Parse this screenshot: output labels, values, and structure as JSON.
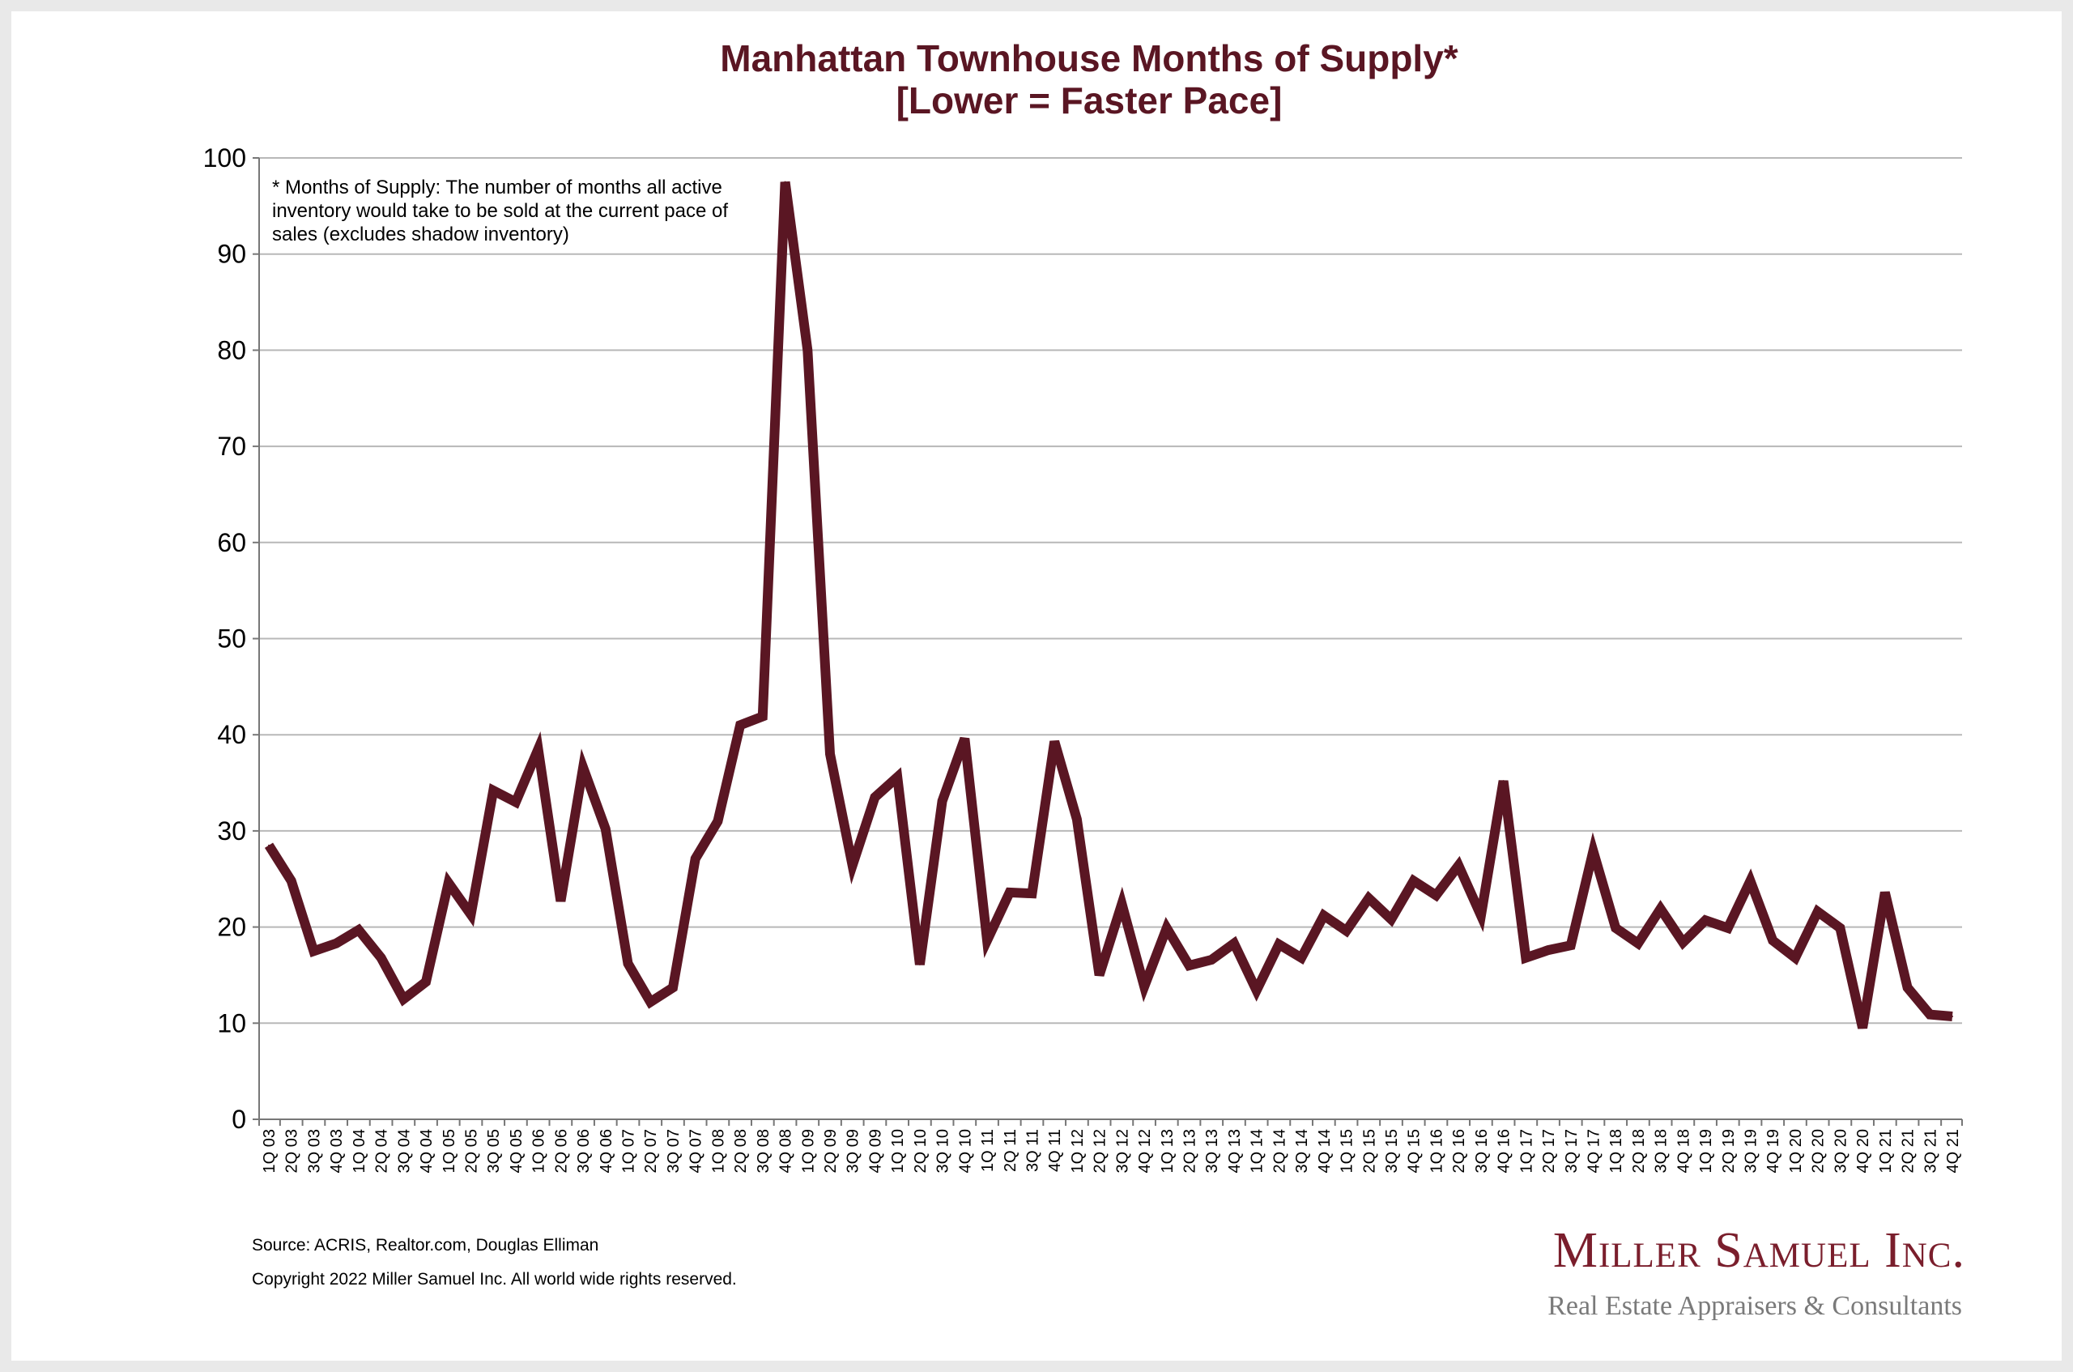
{
  "chart_data": {
    "type": "line",
    "title": "Manhattan Townhouse Months of Supply*",
    "subtitle": "[Lower = Faster Pace]",
    "xlabel": "",
    "ylabel": "",
    "ylim": [
      0,
      100
    ],
    "yticks": [
      0,
      10,
      20,
      30,
      40,
      50,
      60,
      70,
      80,
      90,
      100
    ],
    "grid": true,
    "line_color": "#5a1623",
    "categories": [
      "1Q 03",
      "2Q 03",
      "3Q 03",
      "4Q 03",
      "1Q 04",
      "2Q 04",
      "3Q 04",
      "4Q 04",
      "1Q 05",
      "2Q 05",
      "3Q 05",
      "4Q 05",
      "1Q 06",
      "2Q 06",
      "3Q 06",
      "4Q 06",
      "1Q 07",
      "2Q 07",
      "3Q 07",
      "4Q 07",
      "1Q 08",
      "2Q 08",
      "3Q 08",
      "4Q 08",
      "1Q 09",
      "2Q 09",
      "3Q 09",
      "4Q 09",
      "1Q 10",
      "2Q 10",
      "3Q 10",
      "4Q 10",
      "1Q 11",
      "2Q 11",
      "3Q 11",
      "4Q 11",
      "1Q 12",
      "2Q 12",
      "3Q 12",
      "4Q 12",
      "1Q 13",
      "2Q 13",
      "3Q 13",
      "4Q 13",
      "1Q 14",
      "2Q 14",
      "3Q 14",
      "4Q 14",
      "1Q 15",
      "2Q 15",
      "3Q 15",
      "4Q 15",
      "1Q 16",
      "2Q 16",
      "3Q 16",
      "4Q 16",
      "1Q 17",
      "2Q 17",
      "3Q 17",
      "4Q 17",
      "1Q 18",
      "2Q 18",
      "3Q 18",
      "4Q 18",
      "1Q 19",
      "2Q 19",
      "3Q 19",
      "4Q 19",
      "1Q 20",
      "2Q 20",
      "3Q 20",
      "4Q 20",
      "1Q 21",
      "2Q 21",
      "3Q 21",
      "4Q 21"
    ],
    "series": [
      {
        "values": [
          28.5,
          24.8,
          17.5,
          18.3,
          19.7,
          16.8,
          12.5,
          14.3,
          24.6,
          21.3,
          34.2,
          33.0,
          38.5,
          22.7,
          36.6,
          30.2,
          16.2,
          12.2,
          13.7,
          27.1,
          31.0,
          41.0,
          41.9,
          97.5,
          80.0,
          38.0,
          26.4,
          33.5,
          35.6,
          16.1,
          33.1,
          39.6,
          18.6,
          23.6,
          23.5,
          39.3,
          31.2,
          15.0,
          22.4,
          13.8,
          19.9,
          16.0,
          16.6,
          18.3,
          13.4,
          18.2,
          16.8,
          21.2,
          19.6,
          23.0,
          20.8,
          24.8,
          23.3,
          26.4,
          21.2,
          35.2,
          16.8,
          17.6,
          18.1,
          27.9,
          19.9,
          18.3,
          21.9,
          18.4,
          20.7,
          19.9,
          24.8,
          18.6,
          16.8,
          21.6,
          19.9,
          9.5,
          23.6,
          13.7,
          10.9,
          10.7
        ]
      }
    ],
    "note": [
      "* Months of Supply: The number of months all active",
      "inventory would take to be sold at the current pace of",
      "sales (excludes shadow inventory)"
    ]
  },
  "footer": {
    "source": "Source: ACRIS, Realtor.com, Douglas Elliman",
    "copyright": "Copyright 2022 Miller Samuel Inc.  All world wide rights reserved."
  },
  "logo": {
    "name": "Miller Samuel Inc.",
    "tagline": "Real Estate Appraisers & Consultants"
  }
}
